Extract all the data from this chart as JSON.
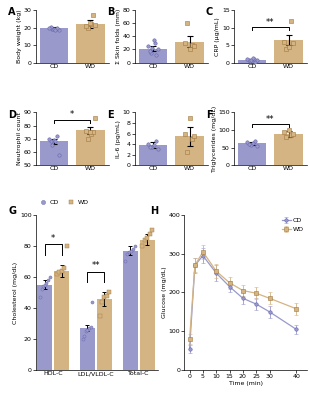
{
  "cd_color": "#9999CC",
  "wd_color": "#D4B483",
  "cd_edge": "#6666AA",
  "wd_edge": "#A07840",
  "panel_A": {
    "label": "A",
    "ylabel": "Body weight (kg)",
    "ylim": [
      0,
      30
    ],
    "yticks": [
      0,
      10,
      20,
      30
    ],
    "cd_mean": 19.5,
    "cd_sem": 0.8,
    "wd_mean": 22.0,
    "wd_sem": 2.2,
    "cd_dots": [
      18.5,
      19.0,
      20.5,
      19.0,
      20.0,
      19.5,
      18.8
    ],
    "wd_dots": [
      20.0,
      22.0,
      27.0,
      21.0,
      22.5,
      21.5
    ],
    "sig": ""
  },
  "panel_B": {
    "label": "B",
    "ylabel": "Σ Skin folds (mm)",
    "ylim": [
      0,
      80
    ],
    "yticks": [
      0,
      20,
      40,
      60,
      80
    ],
    "cd_mean": 21.0,
    "cd_sem": 3.5,
    "wd_mean": 32.0,
    "wd_sem": 8.5,
    "cd_dots": [
      12.0,
      14.0,
      18.0,
      20.0,
      22.0,
      25.0,
      30.0,
      35.0
    ],
    "wd_dots": [
      60.0,
      27.0,
      25.0,
      30.0,
      20.0
    ],
    "sig": ""
  },
  "panel_C": {
    "label": "C",
    "ylabel": "CRP (µg/mL)",
    "ylim": [
      0,
      15
    ],
    "yticks": [
      0,
      5,
      10,
      15
    ],
    "cd_mean": 0.8,
    "cd_sem": 0.2,
    "wd_mean": 6.5,
    "wd_sem": 1.5,
    "cd_dots": [
      0.3,
      0.5,
      0.6,
      0.7,
      0.8,
      0.9,
      1.0,
      1.2
    ],
    "wd_dots": [
      4.0,
      12.0,
      5.5,
      6.0,
      4.5
    ],
    "sig": "**"
  },
  "panel_D": {
    "label": "D",
    "ylabel": "Neutrophil count",
    "ylim": [
      50,
      90
    ],
    "yticks": [
      50,
      60,
      70,
      80,
      90
    ],
    "cd_mean": 68.0,
    "cd_sem": 2.0,
    "wd_mean": 76.5,
    "wd_sem": 2.5,
    "cd_dots": [
      58.0,
      65.0,
      68.0,
      69.0,
      70.0,
      72.0,
      68.5
    ],
    "wd_dots": [
      70.0,
      74.0,
      75.0,
      76.0,
      75.5,
      86.0
    ],
    "sig": "*"
  },
  "panel_E": {
    "label": "E",
    "ylabel": "IL-6 (pg/mL)",
    "ylim": [
      0,
      10
    ],
    "yticks": [
      0,
      2,
      4,
      6,
      8,
      10
    ],
    "cd_mean": 3.8,
    "cd_sem": 0.5,
    "wd_mean": 5.5,
    "wd_sem": 1.8,
    "cd_dots": [
      3.0,
      3.5,
      3.5,
      3.8,
      4.0,
      4.5
    ],
    "wd_dots": [
      2.5,
      5.0,
      5.5,
      6.0,
      9.0
    ],
    "sig": ""
  },
  "panel_F": {
    "label": "F",
    "ylabel": "Triglycerides (mg/dL)",
    "ylim": [
      0,
      150
    ],
    "yticks": [
      0,
      50,
      100,
      150
    ],
    "cd_mean": 62.0,
    "cd_sem": 5.0,
    "wd_mean": 88.0,
    "wd_sem": 8.0,
    "cd_dots": [
      55.0,
      58.0,
      60.0,
      62.0,
      65.0,
      70.0
    ],
    "wd_dots": [
      80.0,
      85.0,
      90.0,
      95.0,
      100.0
    ],
    "sig": "**"
  },
  "panel_G": {
    "label": "G",
    "ylabel": "Cholesterol (mg/dL)",
    "ylim": [
      0,
      100
    ],
    "yticks": [
      0,
      20,
      40,
      60,
      80,
      100
    ],
    "groups": [
      "HDL-C",
      "LDL/VLDL-C",
      "Total-C"
    ],
    "cd_means": [
      55.0,
      27.0,
      77.0
    ],
    "cd_sems": [
      3.0,
      2.0,
      3.0
    ],
    "wd_means": [
      64.0,
      46.0,
      84.0
    ],
    "wd_sems": [
      4.0,
      4.5,
      3.5
    ],
    "cd_dots_hdl": [
      47.0,
      52.0,
      54.0,
      55.0,
      56.0,
      58.0,
      60.0
    ],
    "wd_dots_hdl": [
      62.0,
      63.0,
      64.0,
      66.0,
      80.0
    ],
    "cd_dots_ldl": [
      20.0,
      22.0,
      25.0,
      26.0,
      27.0,
      28.0,
      44.0
    ],
    "wd_dots_ldl": [
      35.0,
      44.0,
      47.0,
      48.0,
      50.0
    ],
    "cd_dots_total": [
      70.0,
      75.0,
      76.0,
      77.0,
      78.0,
      80.0
    ],
    "wd_dots_total": [
      80.0,
      84.0,
      85.0,
      88.0,
      90.0
    ],
    "sig_hdl": "*",
    "sig_ldl": "**"
  },
  "panel_H": {
    "label": "H",
    "ylabel": "Glucose (mg/dL)",
    "xlabel": "Time (min)",
    "ylim": [
      0,
      400
    ],
    "yticks": [
      0,
      100,
      200,
      300,
      400
    ],
    "xticks": [
      0,
      5,
      10,
      15,
      20,
      25,
      30,
      40
    ],
    "cd_x": [
      0,
      2,
      5,
      10,
      15,
      20,
      25,
      30,
      40
    ],
    "cd_means": [
      55,
      270,
      295,
      250,
      215,
      185,
      170,
      150,
      105
    ],
    "cd_sems": [
      10,
      20,
      20,
      20,
      15,
      15,
      15,
      15,
      12
    ],
    "wd_x": [
      0,
      2,
      5,
      10,
      15,
      20,
      25,
      30,
      40
    ],
    "wd_means": [
      80,
      270,
      305,
      255,
      225,
      205,
      198,
      185,
      158
    ],
    "wd_sems": [
      12,
      18,
      18,
      18,
      15,
      15,
      15,
      15,
      15
    ]
  }
}
